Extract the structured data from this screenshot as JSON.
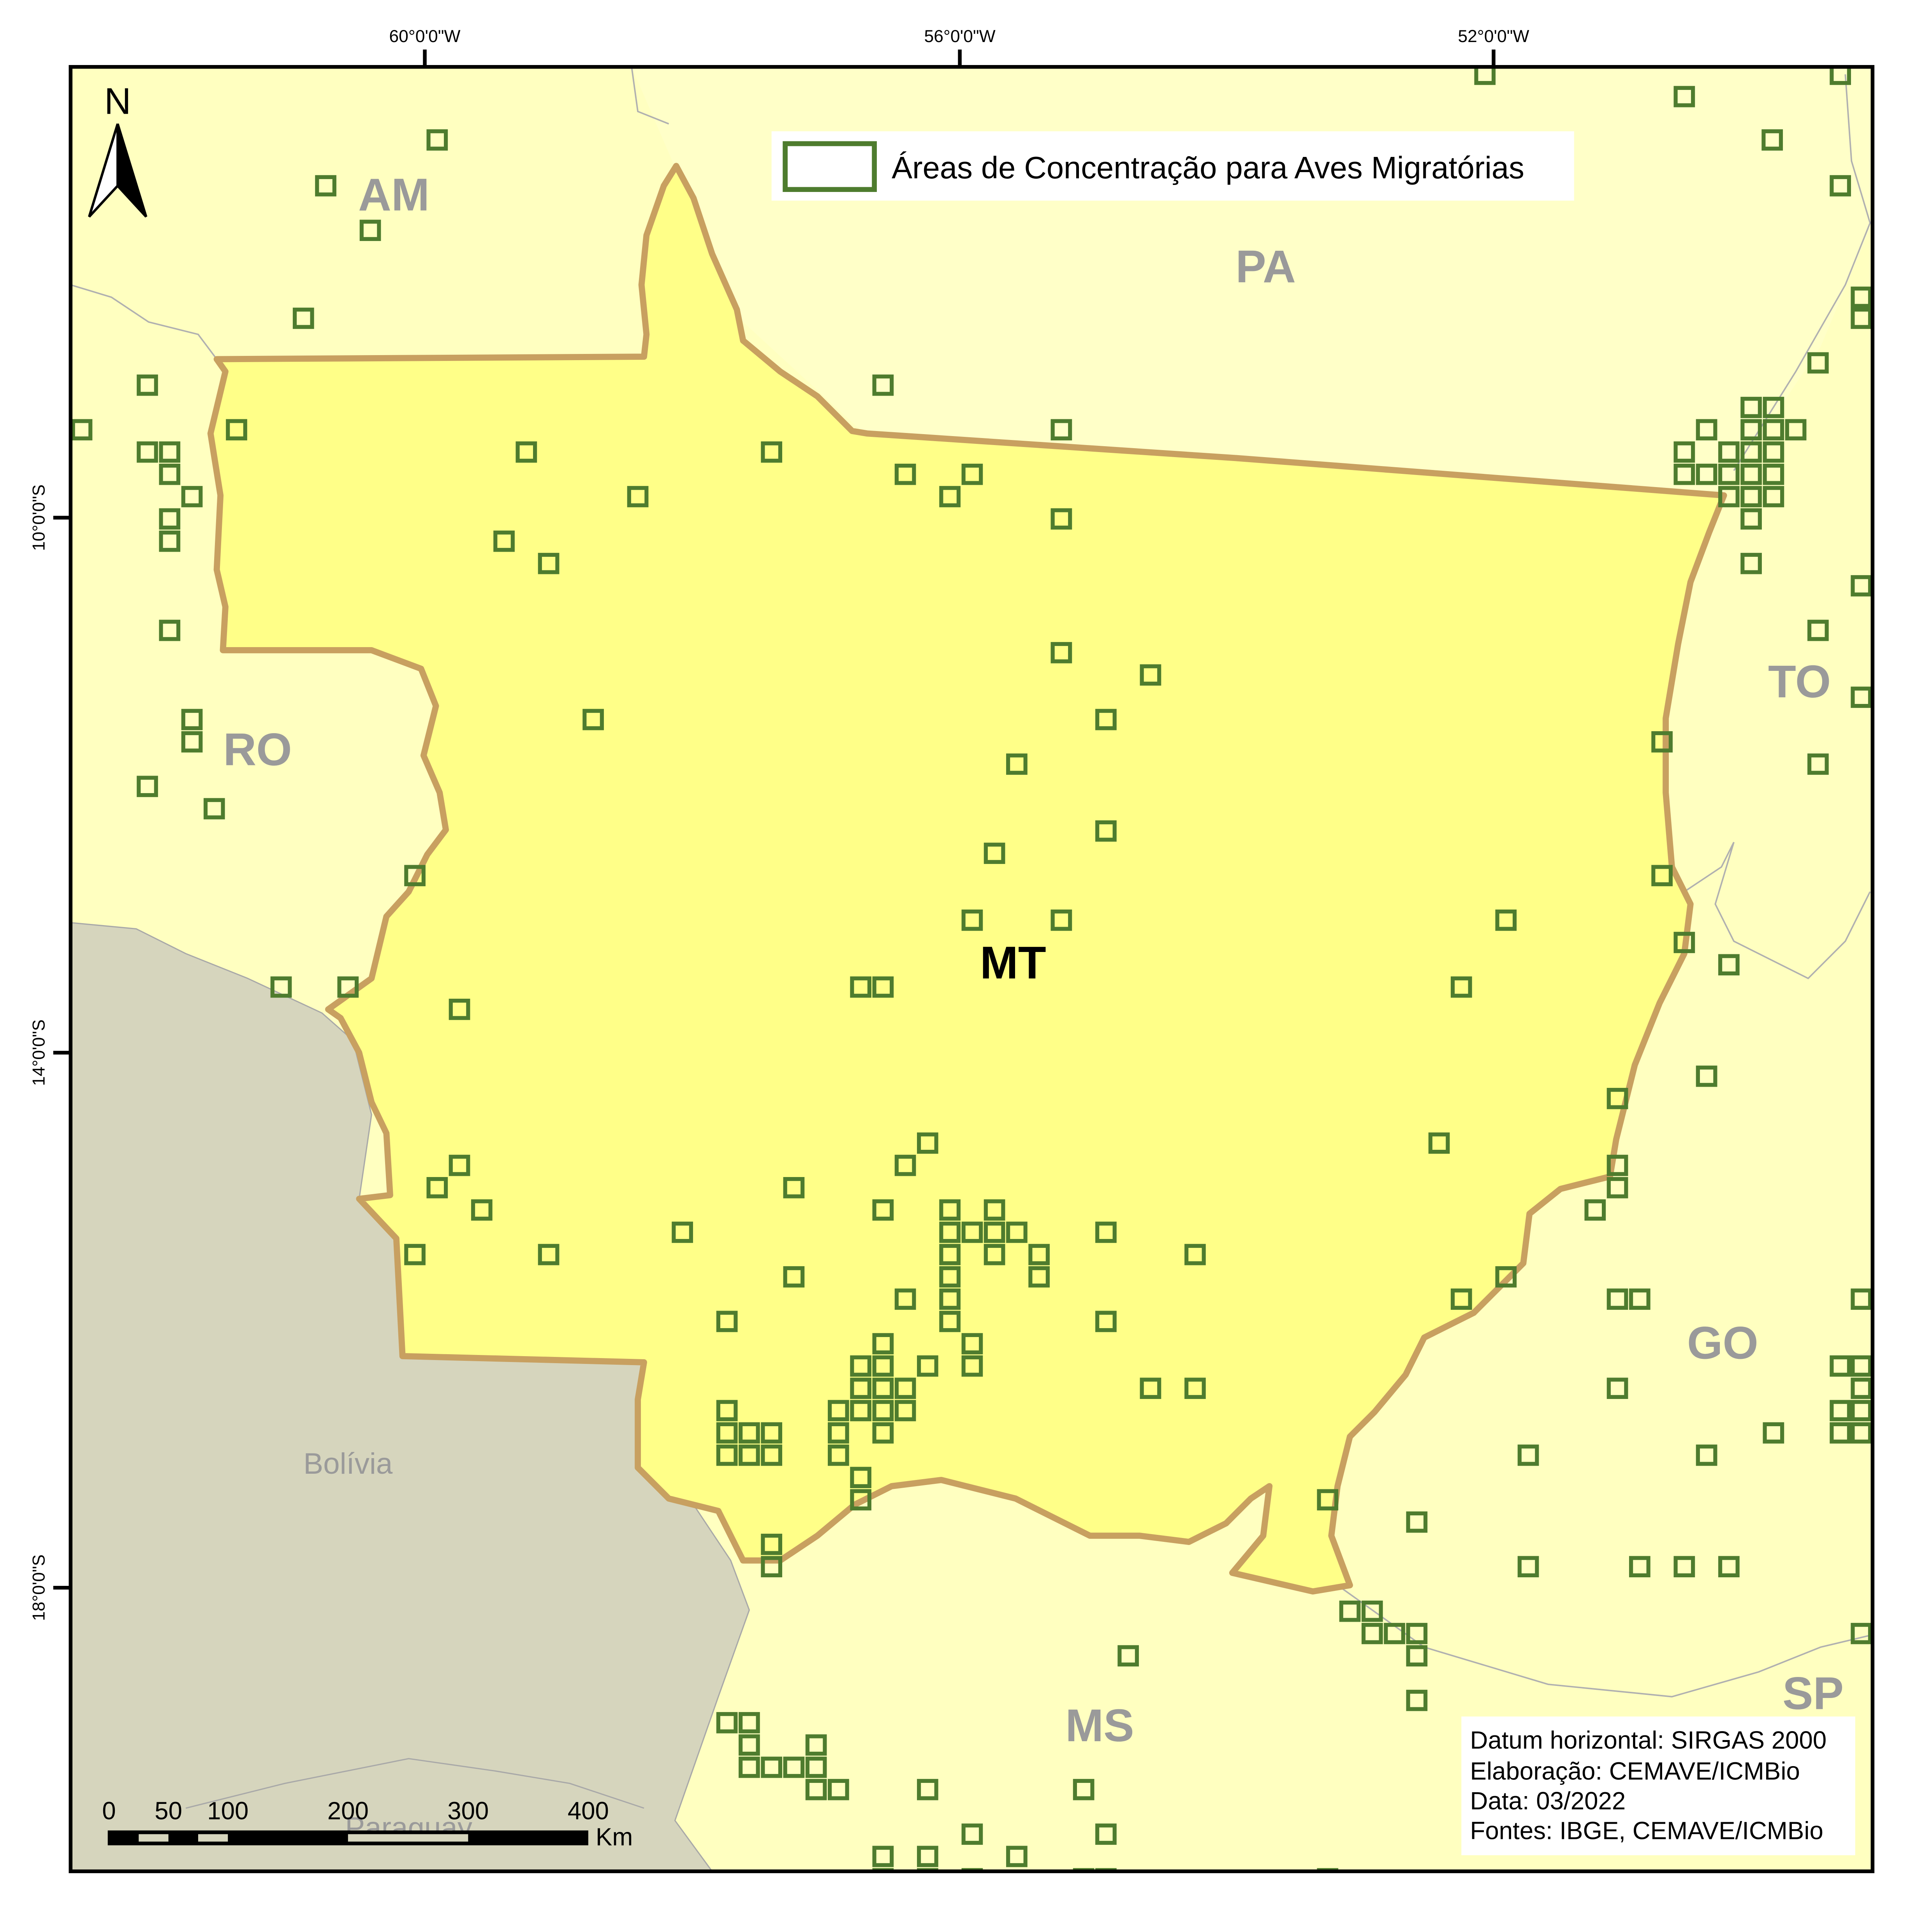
{
  "legend": {
    "label": "Áreas de Concentração para Aves Migratórias"
  },
  "graticule": {
    "lon_labels": [
      "60°0'0\"W",
      "56°0'0\"W",
      "52°0'0\"W"
    ],
    "lat_labels": [
      "10°0'0\"S",
      "14°0'0\"S",
      "18°0'0\"S"
    ]
  },
  "north_arrow": {
    "label": "N"
  },
  "states": {
    "mt": "MT",
    "am": "AM",
    "pa": "PA",
    "ro": "RO",
    "to": "TO",
    "go": "GO",
    "ms": "MS",
    "sp": "SP"
  },
  "countries": {
    "bolivia": "Bolívia",
    "paraguay": "Paraguay"
  },
  "scale_bar": {
    "ticks": [
      "0",
      "50",
      "100",
      "200",
      "300",
      "400"
    ],
    "unit": "Km"
  },
  "info": {
    "datum": "Datum horizontal: SIRGAS 2000",
    "elaboration": "Elaboração: CEMAVE/ICMBio",
    "date": "Data: 03/2022",
    "sources": "Fontes: IBGE, CEMAVE/ICMBio"
  },
  "colors": {
    "frame": "#000000",
    "outer_states_fill": "#ffffc0",
    "mt_fill": "#ffff88",
    "mt_border": "#c8a060",
    "foreign_fill": "#d6d5bd",
    "cell_stroke": "#4e7c2e",
    "state_label": "#9a9a9a"
  },
  "cells": {
    "lon": [
      1,
      2,
      3,
      4,
      5,
      6,
      7,
      8,
      9,
      10,
      11,
      12,
      13,
      14,
      15,
      16,
      17,
      18,
      19,
      20,
      21,
      22,
      23,
      24,
      25,
      26,
      27,
      28,
      29,
      30,
      31,
      32,
      33,
      34,
      35,
      36,
      37,
      38,
      39,
      40,
      41,
      42,
      43,
      44,
      45,
      46,
      47,
      48,
      49,
      50,
      51,
      52,
      53,
      54,
      55,
      56,
      57,
      58,
      59,
      60,
      61,
      62,
      63,
      64,
      65,
      66,
      67,
      68,
      69,
      70,
      71,
      72,
      73,
      74,
      75,
      76,
      77,
      78,
      79,
      80,
      81,
      82,
      83,
      84,
      85,
      86,
      87,
      88,
      89,
      90,
      91,
      92,
      93,
      94,
      95,
      96,
      97,
      98,
      99,
      100,
      101,
      102,
      103,
      104,
      105,
      106,
      107,
      108,
      109,
      110,
      111,
      112,
      113,
      114,
      115,
      116,
      117,
      118,
      119,
      120,
      121,
      122,
      123,
      124,
      125,
      126,
      127,
      128,
      129,
      130,
      131,
      132,
      133,
      134,
      135,
      136,
      137,
      138,
      139,
      140,
      141,
      142,
      143,
      144,
      145,
      146,
      147,
      148,
      149,
      150,
      151,
      152,
      153,
      154,
      155,
      156,
      157,
      158,
      159,
      160,
      161,
      162,
      163,
      164,
      165,
      166,
      167,
      168,
      169,
      170,
      171,
      172,
      173,
      174,
      175,
      176,
      177,
      178,
      179,
      180,
      181,
      182,
      183,
      184,
      185,
      186,
      187,
      188,
      189,
      190,
      191,
      192,
      193,
      194,
      195,
      196,
      197,
      198,
      199,
      200,
      201,
      202,
      203,
      204,
      205,
      206,
      207,
      208,
      209,
      210,
      211,
      212,
      213,
      214,
      215,
      216,
      217,
      218,
      219,
      220,
      221,
      222,
      223,
      224,
      225,
      226,
      227,
      228,
      229,
      230,
      231,
      232,
      233,
      234,
      235,
      236,
      237,
      238,
      239,
      240,
      241,
      242,
      243,
      244,
      245,
      246,
      247,
      248,
      249,
      250,
      251,
      252,
      253,
      254,
      255,
      256,
      257,
      258,
      259,
      260,
      261,
      262,
      263,
      264,
      265,
      266,
      267,
      268,
      269,
      270,
      271,
      272,
      273,
      274,
      275,
      276,
      277,
      278,
      279,
      280,
      281,
      282,
      283,
      284,
      285,
      286,
      287,
      288,
      289,
      290,
      291,
      292,
      293,
      294,
      295,
      296,
      297,
      298,
      299,
      300
    ]
  }
}
